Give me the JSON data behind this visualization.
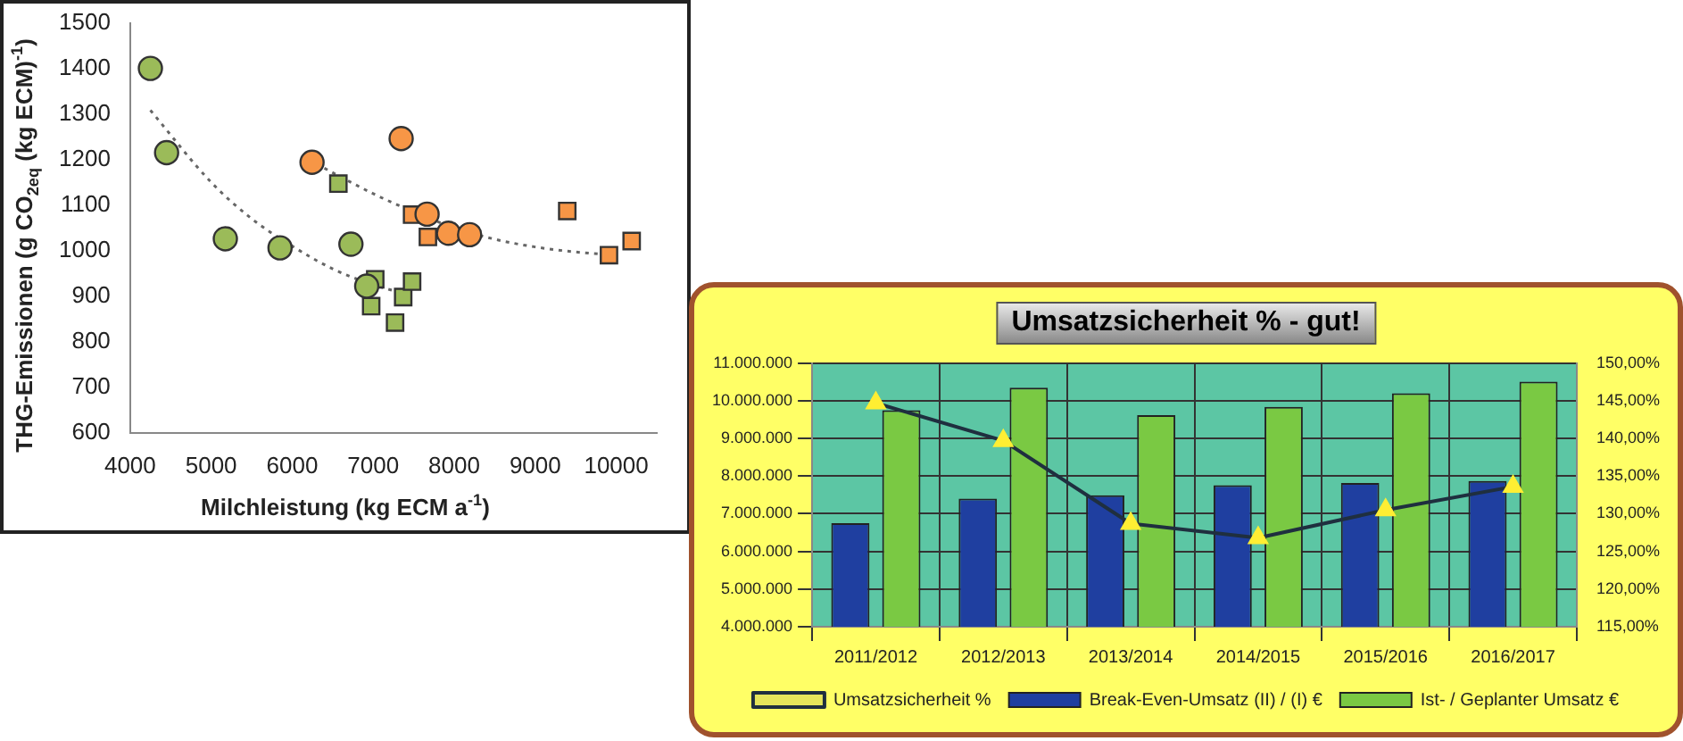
{
  "chart_data": [
    {
      "type": "scatter",
      "xlabel": "Milchleistung (kg ECM a$^{-1}$)",
      "ylabel": "THG-Emissionen (g CO$_{2eq}$ (kg ECM)$^{-1}$)",
      "xlim": [
        4000,
        10500
      ],
      "xticks": [
        4000,
        5000,
        6000,
        7000,
        8000,
        9000,
        10000
      ],
      "ylim": [
        600,
        1500
      ],
      "yticks": [
        600,
        700,
        800,
        900,
        1000,
        1100,
        1200,
        1300,
        1400,
        1500
      ],
      "grid": false,
      "legend": false,
      "series": [
        {
          "type": "scatter",
          "marker": "circle",
          "color": "#9bbb59",
          "x": [
            4250,
            4450,
            5175,
            5850,
            6725,
            6920
          ],
          "values": [
            1400,
            1215,
            1026,
            1006,
            1014,
            922
          ]
        },
        {
          "type": "scatter",
          "marker": "square",
          "color": "#9bbb59",
          "x": [
            6570,
            7025,
            6975,
            7370,
            7480,
            7270
          ],
          "values": [
            1147,
            937,
            878,
            898,
            932,
            842
          ]
        },
        {
          "type": "scatter",
          "marker": "circle",
          "color": "#f79646",
          "x": [
            6245,
            7345,
            7665,
            7930,
            8190
          ],
          "values": [
            1194,
            1246,
            1080,
            1038,
            1035
          ]
        },
        {
          "type": "scatter",
          "marker": "square",
          "color": "#f79646",
          "x": [
            7480,
            7675,
            9395,
            9910,
            10190
          ],
          "values": [
            1079,
            1030,
            1087,
            990,
            1021
          ]
        },
        {
          "type": "line",
          "marker": "none",
          "line_style": "dotted",
          "color": "#666666",
          "x": [
            4250,
            5000,
            5500,
            6000,
            6500,
            7000,
            7400
          ],
          "values": [
            1308,
            1150,
            1070,
            1010,
            960,
            925,
            905
          ]
        },
        {
          "type": "line",
          "marker": "none",
          "line_style": "dotted",
          "color": "#666666",
          "x": [
            6300,
            7000,
            7500,
            8000,
            8500,
            9000,
            9500,
            10000
          ],
          "values": [
            1190,
            1125,
            1085,
            1050,
            1025,
            1008,
            997,
            990
          ]
        }
      ]
    },
    {
      "type": "bar",
      "title": "Umsatzsicherheit % - gut!",
      "categories": [
        "2011/2012",
        "2012/2013",
        "2013/2014",
        "2014/2015",
        "2015/2016",
        "2016/2017"
      ],
      "ylim": [
        4000000,
        11000000
      ],
      "yticks": [
        {
          "value": 4000000,
          "label": "4.000.000"
        },
        {
          "value": 5000000,
          "label": "5.000.000"
        },
        {
          "value": 6000000,
          "label": "6.000.000"
        },
        {
          "value": 7000000,
          "label": "7.000.000"
        },
        {
          "value": 8000000,
          "label": "8.000.000"
        },
        {
          "value": 9000000,
          "label": "9.000.000"
        },
        {
          "value": 10000000,
          "label": "10.000.000"
        },
        {
          "value": 11000000,
          "label": "11.000.000"
        }
      ],
      "y2lim": [
        115,
        150
      ],
      "y2ticks": [
        {
          "value": 115,
          "label": "115,00%"
        },
        {
          "value": 120,
          "label": "120,00%"
        },
        {
          "value": 125,
          "label": "125,00%"
        },
        {
          "value": 130,
          "label": "130,00%"
        },
        {
          "value": 135,
          "label": "135,00%"
        },
        {
          "value": 140,
          "label": "140,00%"
        },
        {
          "value": 145,
          "label": "145,00%"
        },
        {
          "value": 150,
          "label": "150,00%"
        }
      ],
      "grid": true,
      "legend": "bottom",
      "series": [
        {
          "name": "Break-Even-Umsatz (II) / (I) €",
          "type": "bar",
          "color": "#1f3fa0",
          "values": [
            6750000,
            7400000,
            7490000,
            7760000,
            7820000,
            7870000
          ]
        },
        {
          "name": "Ist- / Geplanter Umsatz €",
          "type": "bar",
          "color": "#7ac943",
          "values": [
            9750000,
            10350000,
            9620000,
            9840000,
            10200000,
            10510000
          ]
        },
        {
          "name": "Umsatzsicherheit %",
          "type": "line",
          "axis": "y2",
          "marker": "triangle",
          "color": "#1f2f3f",
          "values": [
            144.7,
            139.7,
            128.7,
            126.8,
            130.5,
            133.6
          ]
        }
      ]
    }
  ]
}
